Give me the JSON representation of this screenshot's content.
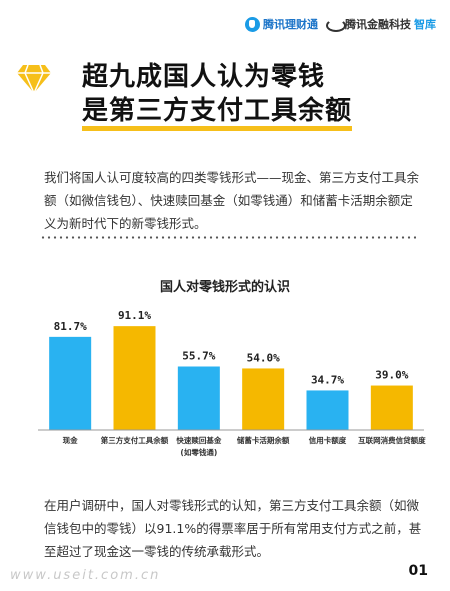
{
  "brand": {
    "logo1": "腾讯理财通",
    "logo2_main": "腾讯金融科技",
    "logo2_accent": "智库"
  },
  "title": {
    "line1": "超九成国人认为零钱",
    "line2": "是第三方支付工具余额"
  },
  "intro": "我们将国人认可度较高的四类零钱形式——现金、第三方支付工具余额（如微信钱包）、快速赎回基金（如零钱通）和储蓄卡活期余额定义为新时代下的新零钱形式。",
  "chart_data": {
    "type": "bar",
    "title": "国人对零钱形式的认识",
    "categories": [
      "现金",
      "第三方支付工具余额",
      "快速赎回基金\n(如零钱通)",
      "储蓄卡活期余额",
      "信用卡额度",
      "互联网消费信贷额度"
    ],
    "values": [
      81.7,
      91.1,
      55.7,
      54.0,
      34.7,
      39.0
    ],
    "value_labels": [
      "81.7%",
      "91.1%",
      "55.7%",
      "54.0%",
      "34.7%",
      "39.0%"
    ],
    "colors": [
      "#29b2f1",
      "#f5b800",
      "#29b2f1",
      "#f5b800",
      "#29b2f1",
      "#f5b800"
    ],
    "ylim": [
      0,
      100
    ],
    "grid": false,
    "legend": "none"
  },
  "footer_text": "在用户调研中，国人对零钱形式的认知，第三方支付工具余额（如微信钱包中的零钱）以91.1%的得票率居于所有常用支付方式之前，甚至超过了现金这一零钱的传统承载形式。",
  "watermark": "www.useit.com.cn",
  "page_number": "01"
}
